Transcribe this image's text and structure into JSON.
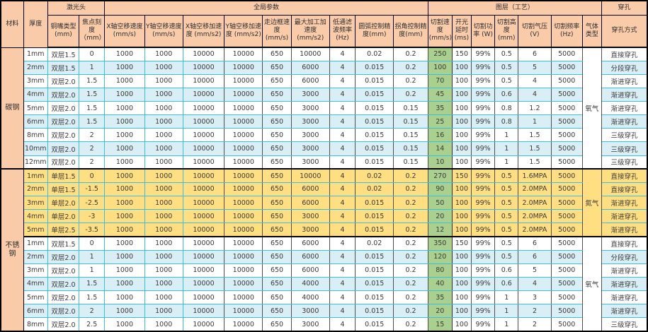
{
  "colors": {
    "header_bg": "#F9CBA9",
    "blue_row": "#D9EEF5",
    "yellow_row": "#FFDF82",
    "green_col": "#A9D08E",
    "grid": "#3BBEE2"
  },
  "header": {
    "material": "材料",
    "thickness": "厚度",
    "sections": [
      {
        "label": "激光头",
        "span": 2
      },
      {
        "label": "全局参数",
        "span": 9
      },
      {
        "label": "图层（工艺）",
        "span": 7
      },
      {
        "label": "穿孔",
        "span": 1
      }
    ],
    "columns": [
      "铜嘴类型 (mm)",
      "焦点刻度（mm）",
      "X轴空移速度(mm/s)",
      "Y轴空移速度(mm/s)",
      "X轴空移加速度 (mm/s2)",
      "Y轴空移加速度 (mm/s2)",
      "走边框速度 (mm/s)",
      "最大加工加速度 (mm/s2)",
      "低通滤波频率 (Hz)",
      "圆弧控制精度(mm)",
      "拐角控制精度(mm)",
      "切割速度 (mm/s)",
      "开光延时(ms)",
      "切割功率 (W)",
      "切割高度(mm)",
      "切割气压 (V)",
      "切割频率 (Hz)",
      "气体类型",
      "穿孔方式"
    ]
  },
  "materials": [
    {
      "label": "碳钢",
      "rows": 9
    },
    {
      "label": "不锈钢",
      "rows": 12
    }
  ],
  "groups": [
    {
      "gas": "氧气",
      "fill": "alt",
      "rows": [
        {
          "thickness": "1mm",
          "values": [
            "双层1.5",
            "0",
            "1000",
            "1000",
            "10000",
            "10000",
            "650",
            "10000",
            "4",
            "0.02",
            "0.2",
            "250",
            "150",
            "99%",
            "0.5",
            "6",
            "5000"
          ],
          "pierce": "直接穿孔"
        },
        {
          "thickness": "2mm",
          "values": [
            "双层1.5",
            "1",
            "1000",
            "1000",
            "10000",
            "10000",
            "650",
            "6000",
            "4",
            "0.015",
            "0.2",
            "100",
            "100",
            "99%",
            "0.5",
            "5",
            "5000"
          ],
          "pierce": "分段穿孔"
        },
        {
          "thickness": "3mm",
          "values": [
            "双层2.0",
            "1.5",
            "1000",
            "1000",
            "10000",
            "10000",
            "650",
            "6000",
            "4",
            "0.015",
            "0.2",
            "70",
            "100",
            "99%",
            "0.5",
            "4",
            "5000"
          ],
          "pierce": "渐进穿孔"
        },
        {
          "thickness": "4mm",
          "values": [
            "双层2.0",
            "1.5",
            "1000",
            "1000",
            "10000",
            "10000",
            "650",
            "3000",
            "4",
            "0.015",
            "0.2",
            "45",
            "100",
            "99%",
            "0.6",
            "4",
            "5000"
          ],
          "pierce": "渐进穿孔"
        },
        {
          "thickness": "5mm",
          "values": [
            "双层2.0",
            "1.5",
            "1000",
            "1000",
            "10000",
            "10000",
            "650",
            "3000",
            "4",
            "0.015",
            "0.15",
            "35",
            "100",
            "99%",
            "0.8",
            "1.2",
            "5000"
          ],
          "pierce": "渐进穿孔"
        },
        {
          "thickness": "6mm",
          "values": [
            "双层2.0",
            "1.5",
            "1000",
            "1000",
            "10000",
            "10000",
            "650",
            "3000",
            "4",
            "0.015",
            "0.15",
            "25",
            "100",
            "99%",
            "0.8",
            "1",
            "5000"
          ],
          "pierce": "渐进穿孔"
        },
        {
          "thickness": "8mm",
          "values": [
            "双层2.0",
            "2",
            "1000",
            "1000",
            "10000",
            "10000",
            "650",
            "3000",
            "4",
            "0.015",
            "0.15",
            "16",
            "100",
            "99%",
            "1",
            "1.5",
            "5000"
          ],
          "pierce": "三级穿孔"
        },
        {
          "thickness": "10mm",
          "values": [
            "双层2.0",
            "2",
            "1000",
            "1000",
            "10000",
            "10000",
            "650",
            "3000",
            "4",
            "0.015",
            "0.15",
            "14",
            "100",
            "99%",
            "1",
            "1.5",
            "5000"
          ],
          "pierce": "三级穿孔"
        },
        {
          "thickness": "12mm",
          "values": [
            "双层2.0",
            "2",
            "1000",
            "1000",
            "10000",
            "10000",
            "650",
            "3000",
            "4",
            "0.015",
            "0.15",
            "10",
            "100",
            "99%",
            "1",
            "1.5",
            "5000"
          ],
          "pierce": "三级穿孔"
        }
      ]
    },
    {
      "gas": "氮气",
      "fill": "yellow",
      "rows": [
        {
          "thickness": "1mm",
          "values": [
            "单层1.5",
            "0",
            "1000",
            "1000",
            "10000",
            "10000",
            "650",
            "10000",
            "4",
            "0.02",
            "0.2",
            "270",
            "150",
            "99%",
            "0.5",
            "1.6MPA",
            "5000"
          ],
          "pierce": "直接穿孔"
        },
        {
          "thickness": "2mm",
          "values": [
            "单层1.5",
            "-1.5",
            "1000",
            "1000",
            "10000",
            "10000",
            "650",
            "6000",
            "4",
            "0.02",
            "0.2",
            "90",
            "100",
            "99%",
            "0.5",
            "2.0MPA",
            "5000"
          ],
          "pierce": "直接穿孔"
        },
        {
          "thickness": "3mm",
          "values": [
            "单层2.0",
            "-2.5",
            "1000",
            "1000",
            "10000",
            "10000",
            "650",
            "6000",
            "4",
            "0.015",
            "0.2",
            "50",
            "100",
            "99%",
            "0.5",
            "2.0MPA",
            "5000"
          ],
          "pierce": "渐进穿孔"
        },
        {
          "thickness": "4mm",
          "values": [
            "单层2.0",
            "-3",
            "1000",
            "1000",
            "10000",
            "10000",
            "650",
            "3000",
            "4",
            "0.015",
            "0.2",
            "20",
            "100",
            "99%",
            "0.5",
            "2.0MPA",
            "5000"
          ],
          "pierce": "渐进穿孔"
        },
        {
          "thickness": "5mm",
          "values": [
            "单层2.5",
            "-3.5",
            "1000",
            "1000",
            "10000",
            "10000",
            "650",
            "3000",
            "4",
            "0.015",
            "0.2",
            "12",
            "100",
            "99%",
            "0.5",
            "2.0MPA",
            "5000"
          ],
          "pierce": "渐进穿孔"
        }
      ]
    },
    {
      "gas": "氧气",
      "fill": "alt",
      "rows": [
        {
          "thickness": "1mm",
          "values": [
            "双层1.5",
            "0",
            "1000",
            "1000",
            "10000",
            "10000",
            "650",
            "6000",
            "4",
            "0.02",
            "0.2",
            "350",
            "150",
            "99%",
            "0.5",
            "6",
            "5000"
          ],
          "pierce": "直接穿孔"
        },
        {
          "thickness": "2mm",
          "values": [
            "双层2.0",
            "1",
            "1000",
            "1000",
            "10000",
            "10000",
            "650",
            "6000",
            "4",
            "0.015",
            "0.2",
            "120",
            "100",
            "99%",
            "0.5",
            "6",
            "5000"
          ],
          "pierce": "分段穿孔"
        },
        {
          "thickness": "3mm",
          "values": [
            "双层2.0",
            "1",
            "1000",
            "1000",
            "10000",
            "10000",
            "650",
            "6000",
            "4",
            "0.015",
            "0.2",
            "80",
            "100",
            "99%",
            "0.6",
            "5",
            "5000"
          ],
          "pierce": "渐进穿孔"
        },
        {
          "thickness": "4mm",
          "values": [
            "双层2.0",
            "1.5",
            "1000",
            "1000",
            "10000",
            "10000",
            "650",
            "4000",
            "4",
            "0.015",
            "0.2",
            "40",
            "100",
            "99%",
            "0.6",
            "4",
            "5000"
          ],
          "pierce": "渐进穿孔"
        },
        {
          "thickness": "5mm",
          "values": [
            "双层2.0",
            "1.5",
            "1000",
            "1000",
            "10000",
            "10000",
            "650",
            "4000",
            "4",
            "0.015",
            "0.2",
            "35",
            "100",
            "99%",
            "1",
            "3",
            "5000"
          ],
          "pierce": "渐进穿孔"
        },
        {
          "thickness": "6mm",
          "values": [
            "双层2.0",
            "2",
            "1000",
            "1000",
            "10000",
            "10000",
            "650",
            "3000",
            "4",
            "0.015",
            "0.2",
            "20",
            "100",
            "99%",
            "1",
            "2",
            "5000"
          ],
          "pierce": "渐进穿孔"
        },
        {
          "thickness": "8mm",
          "values": [
            "双层2.0",
            "2.5",
            "1000",
            "1000",
            "10000",
            "10000",
            "650",
            "3000",
            "4",
            "0.015",
            "0.2",
            "15",
            "100",
            "99%",
            "1",
            "2",
            "5000"
          ],
          "pierce": "三级穿孔"
        }
      ]
    }
  ]
}
